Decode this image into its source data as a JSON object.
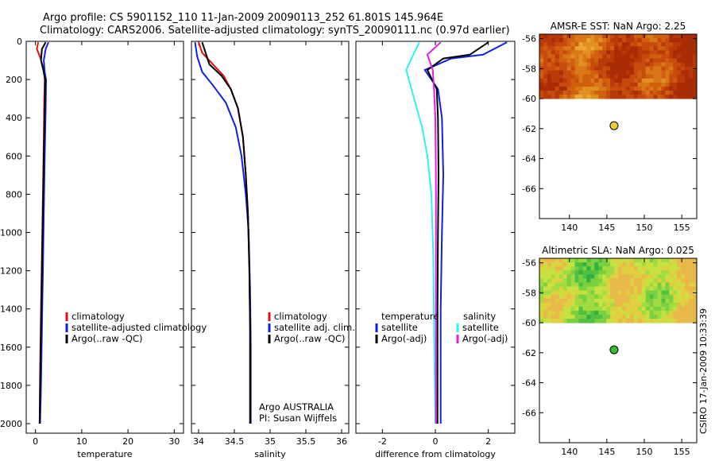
{
  "header": {
    "line1": "Argo profile: CS 5901152_110 11-Jan-2009 20090113_252 61.801S 145.964E",
    "line2": "Climatology: CARS2006. Satellite-adjusted climatology: synTS_20090111.nc (0.97d earlier)"
  },
  "credit": "CSIRO 17-Jan-2009 10:33:39",
  "colors": {
    "climatology": "#e01010",
    "satellite": "#1020e0",
    "argo": "#000000",
    "cyan": "#30f0f0",
    "magenta": "#e020e0",
    "sst_dot": "#f0d030",
    "sla_dot": "#30c030"
  },
  "chart_data": [
    {
      "type": "line",
      "id": "temperature",
      "xlabel": "temperature",
      "xlim": [
        -2,
        32
      ],
      "ylim": [
        2050,
        0
      ],
      "xticks": [
        0,
        10,
        20,
        30
      ],
      "xtick_labels": [
        "0",
        "10",
        "20",
        "30"
      ],
      "yticks": [
        0,
        200,
        400,
        600,
        800,
        1000,
        1200,
        1400,
        1600,
        1800,
        2000
      ],
      "ytick_labels": [
        "0",
        "200",
        "400",
        "600",
        "800",
        "1000",
        "1200",
        "1400",
        "1600",
        "1800",
        "2000"
      ],
      "legend": [
        "climatology",
        "satellite-adjusted climatology",
        "Argo(..raw -QC)"
      ],
      "series": [
        {
          "name": "climatology",
          "color": "#e01010",
          "points": [
            [
              0.6,
              5
            ],
            [
              0.3,
              40
            ],
            [
              1.1,
              90
            ],
            [
              1.8,
              150
            ],
            [
              2.0,
              200
            ],
            [
              1.9,
              300
            ],
            [
              1.8,
              500
            ],
            [
              1.6,
              800
            ],
            [
              1.4,
              1100
            ],
            [
              1.2,
              1400
            ],
            [
              1.0,
              1700
            ],
            [
              0.9,
              2000
            ]
          ]
        },
        {
          "name": "satellite-adjusted climatology",
          "color": "#1020e0",
          "points": [
            [
              2.8,
              5
            ],
            [
              2.2,
              40
            ],
            [
              1.8,
              100
            ],
            [
              2.0,
              160
            ],
            [
              2.3,
              200
            ],
            [
              2.2,
              350
            ],
            [
              2.0,
              600
            ],
            [
              1.8,
              900
            ],
            [
              1.6,
              1200
            ],
            [
              1.4,
              1500
            ],
            [
              1.2,
              1800
            ],
            [
              1.0,
              2000
            ]
          ]
        },
        {
          "name": "Argo(..raw -QC)",
          "color": "#000000",
          "points": [
            [
              2.2,
              5
            ],
            [
              1.4,
              40
            ],
            [
              1.2,
              100
            ],
            [
              1.7,
              150
            ],
            [
              2.1,
              200
            ],
            [
              2.0,
              350
            ],
            [
              1.8,
              600
            ],
            [
              1.6,
              900
            ],
            [
              1.4,
              1200
            ],
            [
              1.2,
              1500
            ],
            [
              1.0,
              1800
            ],
            [
              0.9,
              2000
            ]
          ]
        }
      ]
    },
    {
      "type": "line",
      "id": "salinity",
      "xlabel": "salinity",
      "xlim": [
        33.9,
        36.1
      ],
      "ylim": [
        2050,
        0
      ],
      "xticks": [
        34,
        34.5,
        35,
        35.5,
        36
      ],
      "xtick_labels": [
        "34",
        "34.5",
        "35",
        "35.5",
        "36"
      ],
      "legend": [
        "climatology",
        "satellite adj. clim.",
        "Argo(..raw -QC)"
      ],
      "annotation": [
        "Argo AUSTRALIA",
        "PI: Susan Wijffels"
      ],
      "series": [
        {
          "name": "climatology",
          "color": "#e01010",
          "points": [
            [
              34.0,
              5
            ],
            [
              34.05,
              60
            ],
            [
              34.2,
              120
            ],
            [
              34.35,
              180
            ],
            [
              34.45,
              250
            ],
            [
              34.55,
              350
            ],
            [
              34.62,
              500
            ],
            [
              34.66,
              700
            ],
            [
              34.69,
              900
            ],
            [
              34.71,
              1200
            ],
            [
              34.72,
              1500
            ],
            [
              34.72,
              1800
            ],
            [
              34.72,
              2000
            ]
          ]
        },
        {
          "name": "satellite adj. clim.",
          "color": "#1020e0",
          "points": [
            [
              33.95,
              5
            ],
            [
              33.98,
              80
            ],
            [
              34.05,
              160
            ],
            [
              34.2,
              230
            ],
            [
              34.38,
              320
            ],
            [
              34.52,
              450
            ],
            [
              34.6,
              600
            ],
            [
              34.66,
              800
            ],
            [
              34.7,
              1000
            ],
            [
              34.72,
              1300
            ],
            [
              34.73,
              1600
            ],
            [
              34.73,
              1800
            ],
            [
              34.73,
              2000
            ]
          ]
        },
        {
          "name": "Argo(..raw -QC)",
          "color": "#000000",
          "points": [
            [
              34.05,
              5
            ],
            [
              34.08,
              40
            ],
            [
              34.15,
              120
            ],
            [
              34.32,
              180
            ],
            [
              34.45,
              250
            ],
            [
              34.55,
              350
            ],
            [
              34.62,
              500
            ],
            [
              34.66,
              700
            ],
            [
              34.69,
              900
            ],
            [
              34.71,
              1200
            ],
            [
              34.72,
              1500
            ],
            [
              34.72,
              1800
            ],
            [
              34.72,
              2000
            ]
          ]
        }
      ]
    },
    {
      "type": "line",
      "id": "difference",
      "xlabel": "difference from climatology",
      "xlim": [
        -3,
        3
      ],
      "ylim": [
        2050,
        0
      ],
      "xticks": [
        -2,
        0,
        2
      ],
      "xtick_labels": [
        "-2",
        "0",
        "2"
      ],
      "legend_headers": [
        "temperature",
        "salinity"
      ],
      "legend": [
        "satellite",
        "Argo(-adj)",
        "satellite",
        "Argo(-adj)"
      ],
      "series": [
        {
          "name": "temperature satellite",
          "color": "#1020e0",
          "points": [
            [
              2.7,
              5
            ],
            [
              1.8,
              70
            ],
            [
              0.6,
              90
            ],
            [
              -0.4,
              150
            ],
            [
              0.1,
              250
            ],
            [
              0.25,
              400
            ],
            [
              0.3,
              700
            ],
            [
              0.25,
              1000
            ],
            [
              0.2,
              1400
            ],
            [
              0.2,
              1800
            ],
            [
              0.2,
              2000
            ]
          ]
        },
        {
          "name": "temperature Argo(-adj)",
          "color": "#000000",
          "points": [
            [
              2.0,
              5
            ],
            [
              1.3,
              70
            ],
            [
              0.3,
              90
            ],
            [
              -0.3,
              150
            ],
            [
              0.05,
              250
            ],
            [
              0.1,
              400
            ],
            [
              0.12,
              700
            ],
            [
              0.1,
              1000
            ],
            [
              0.08,
              1400
            ],
            [
              0.08,
              1800
            ],
            [
              0.08,
              2000
            ]
          ]
        },
        {
          "name": "salinity satellite",
          "color": "#30f0f0",
          "points": [
            [
              -0.6,
              5
            ],
            [
              -0.8,
              60
            ],
            [
              -1.1,
              150
            ],
            [
              -0.8,
              300
            ],
            [
              -0.5,
              450
            ],
            [
              -0.3,
              600
            ],
            [
              -0.15,
              800
            ],
            [
              -0.08,
              1100
            ],
            [
              -0.05,
              1500
            ],
            [
              -0.02,
              1800
            ],
            [
              0.0,
              2000
            ]
          ]
        },
        {
          "name": "salinity Argo(-adj)",
          "color": "#e020e0",
          "points": [
            [
              0.2,
              5
            ],
            [
              -0.3,
              70
            ],
            [
              -0.1,
              150
            ],
            [
              -0.05,
              250
            ],
            [
              0.0,
              400
            ],
            [
              0.02,
              700
            ],
            [
              0.02,
              1000
            ],
            [
              0.02,
              1400
            ],
            [
              0.02,
              1800
            ],
            [
              0.02,
              2000
            ]
          ]
        }
      ]
    },
    {
      "type": "heatmap",
      "id": "sst",
      "title": "AMSR-E SST: NaN Argo: 2.25",
      "xlim": [
        136,
        157
      ],
      "ylim": [
        -68,
        -55.7
      ],
      "xticks": [
        140,
        145,
        150,
        155
      ],
      "xtick_labels": [
        "140",
        "145",
        "150",
        "155"
      ],
      "yticks": [
        -56,
        -58,
        -60,
        -62,
        -64,
        -66
      ],
      "ytick_labels": [
        "-56",
        "-58",
        "-60",
        "-62",
        "-64",
        "-66"
      ],
      "data_lat_range": [
        -60,
        -55.7
      ],
      "marker": {
        "lon": 145.964,
        "lat": -61.801
      }
    },
    {
      "type": "heatmap",
      "id": "sla",
      "title": "Altimetric SLA: NaN Argo: 0.025",
      "xlim": [
        136,
        157
      ],
      "ylim": [
        -68,
        -55.7
      ],
      "xticks": [
        140,
        145,
        150,
        155
      ],
      "xtick_labels": [
        "140",
        "145",
        "150",
        "155"
      ],
      "yticks": [
        -56,
        -58,
        -60,
        -62,
        -64,
        -66
      ],
      "ytick_labels": [
        "-56",
        "-58",
        "-60",
        "-62",
        "-64",
        "-66"
      ],
      "data_lat_range": [
        -60,
        -55.7
      ],
      "marker": {
        "lon": 145.964,
        "lat": -61.801
      }
    }
  ]
}
